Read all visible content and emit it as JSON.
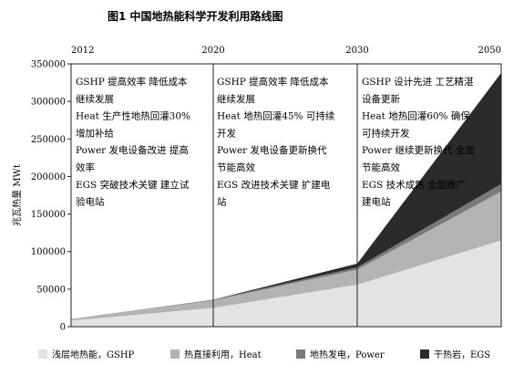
{
  "figure_title": "图1  中国地热能科学开发利用路线图",
  "chart_data": {
    "type": "area",
    "stacked": true,
    "x": [
      2012,
      2020,
      2030,
      2050
    ],
    "x_labels": [
      "2012",
      "2020",
      "2030",
      "2050"
    ],
    "ylabel": "兆瓦热量 MWt",
    "ylim": [
      0,
      350000
    ],
    "yticks": [
      0,
      50000,
      100000,
      150000,
      200000,
      250000,
      300000,
      350000
    ],
    "ytick_labels": [
      "0",
      "50000",
      "100000",
      "150000",
      "200000",
      "250000",
      "300000",
      "350000"
    ],
    "series": [
      {
        "name": "浅层地热能，GSHP",
        "color": "#e3e3e3",
        "values": [
          8000,
          25000,
          56000,
          115000
        ]
      },
      {
        "name": "热直接利用，Heat",
        "color": "#b3b3b3",
        "values": [
          2000,
          10000,
          20000,
          65000
        ]
      },
      {
        "name": "地热发电，Power",
        "color": "#7a7a7a",
        "values": [
          200,
          1000,
          3000,
          10000
        ]
      },
      {
        "name": "干热岩，EGS",
        "color": "#2b2b2b",
        "values": [
          0,
          0,
          5000,
          148000
        ]
      }
    ],
    "annotations": [
      {
        "period": "2012-2020",
        "lines": [
          "GSHP 提高效率 降低成本",
          "继续发展",
          "Heat 生产性地热回灌30%",
          "增加补给",
          "Power 发电设备改进 提高",
          "效率",
          "EGS 突破技术关键 建立试",
          "验电站"
        ]
      },
      {
        "period": "2020-2030",
        "lines": [
          "GSHP 提高效率 降低成本",
          "继续发展",
          "Heat 地热回灌45% 可持续",
          "开发",
          "Power 发电设备更新换代",
          "节能高效",
          "EGS 改进技术关键 扩建电",
          "站"
        ]
      },
      {
        "period": "2030-2050",
        "lines": [
          "GSHP 设计先进 工艺精湛",
          "设备更新",
          "Heat 地热回灌60% 确保",
          "可持续开发",
          "Power 继续更新换代 全面",
          "节能高效",
          "EGS 技术成熟 全面推广",
          "建电站"
        ]
      }
    ],
    "grid": false,
    "legend_position": "bottom"
  }
}
